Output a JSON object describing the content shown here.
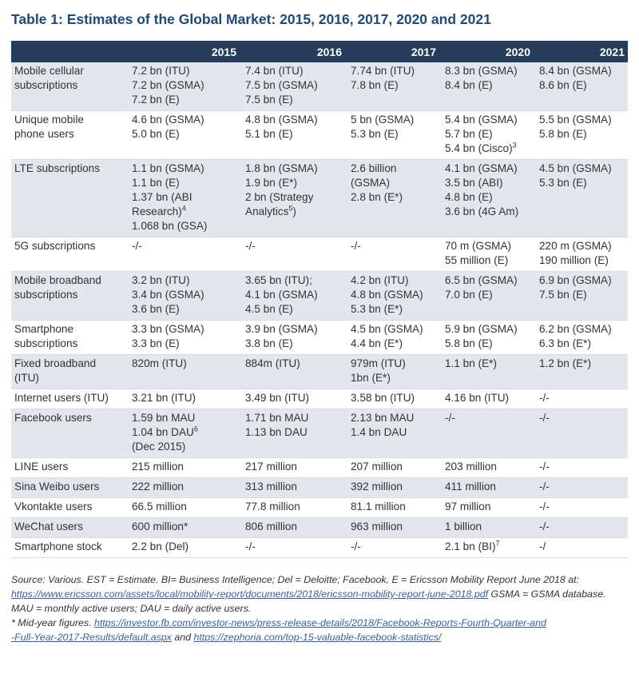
{
  "title": "Table 1: Estimates of the Global Market: 2015, 2016, 2017, 2020 and 2021",
  "table": {
    "headers": [
      "",
      "2015",
      "2016",
      "2017",
      "2020",
      "2021"
    ],
    "rows": [
      {
        "label": [
          "Mobile cellular",
          "subscriptions"
        ],
        "cells": [
          [
            {
              "t": "7.2 bn (ITU)"
            },
            {
              "t": "7.2 bn (GSMA)"
            },
            {
              "t": "7.2 bn (E)"
            }
          ],
          [
            {
              "t": "7.4 bn (ITU)"
            },
            {
              "t": "7.5 bn (GSMA)"
            },
            {
              "t": "7.5 bn (E)"
            }
          ],
          [
            {
              "t": "7.74 bn (ITU)"
            },
            {
              "t": "7.8 bn (E)"
            }
          ],
          [
            {
              "t": "8.3 bn (GSMA)"
            },
            {
              "t": "8.4 bn (E)"
            }
          ],
          [
            {
              "t": "8.4 bn (GSMA)"
            },
            {
              "t": "8.6 bn (E)"
            }
          ]
        ]
      },
      {
        "label": [
          "Unique mobile",
          "phone users"
        ],
        "cells": [
          [
            {
              "t": "4.6 bn (GSMA)"
            },
            {
              "t": "5.0 bn (E)"
            }
          ],
          [
            {
              "t": "4.8 bn (GSMA)"
            },
            {
              "t": "5.1 bn (E)"
            }
          ],
          [
            {
              "t": "5 bn (GSMA)"
            },
            {
              "t": "5.3 bn (E)"
            }
          ],
          [
            {
              "t": "5.4 bn (GSMA)"
            },
            {
              "t": "5.7 bn (E)"
            },
            {
              "t": "5.4 bn (Cisco)",
              "sup": "3"
            }
          ],
          [
            {
              "t": "5.5 bn (GSMA)"
            },
            {
              "t": "5.8 bn (E)"
            }
          ]
        ]
      },
      {
        "label": [
          "LTE subscriptions"
        ],
        "cells": [
          [
            {
              "t": "1.1 bn (GSMA)"
            },
            {
              "t": "1.1 bn (E)"
            },
            {
              "t": "1.37 bn (ABI"
            },
            {
              "t": "Research)",
              "sup": "4"
            },
            {
              "t": "1.068 bn (GSA)"
            }
          ],
          [
            {
              "t": "1.8 bn (GSMA)"
            },
            {
              "t": "1.9 bn (E*)"
            },
            {
              "t": "2 bn (Strategy"
            },
            {
              "t": "Analytics",
              "sup": "5",
              "after": ")"
            }
          ],
          [
            {
              "t": "2.6 billion"
            },
            {
              "t": "(GSMA)"
            },
            {
              "t": "2.8 bn (E*)"
            }
          ],
          [
            {
              "t": "4.1 bn (GSMA)"
            },
            {
              "t": "3.5 bn (ABI)"
            },
            {
              "t": "4.8 bn (E)"
            },
            {
              "t": "3.6 bn (4G Am)"
            }
          ],
          [
            {
              "t": "4.5 bn (GSMA)"
            },
            {
              "t": "5.3 bn (E)"
            }
          ]
        ]
      },
      {
        "label": [
          "5G subscriptions"
        ],
        "cells": [
          [
            {
              "t": "-/-"
            }
          ],
          [
            {
              "t": "-/-"
            }
          ],
          [
            {
              "t": "-/-"
            }
          ],
          [
            {
              "t": "70 m (GSMA)"
            },
            {
              "t": "55 million (E)"
            }
          ],
          [
            {
              "t": "220 m (GSMA)"
            },
            {
              "t": "190 million (E)"
            }
          ]
        ]
      },
      {
        "label": [
          "Mobile broadband",
          "subscriptions"
        ],
        "cells": [
          [
            {
              "t": "3.2 bn (ITU)"
            },
            {
              "t": "3.4 bn (GSMA)"
            },
            {
              "t": "3.6 bn (E)"
            }
          ],
          [
            {
              "t": "3.65 bn (ITU);"
            },
            {
              "t": "4.1 bn (GSMA)"
            },
            {
              "t": "4.5 bn (E)"
            }
          ],
          [
            {
              "t": "4.2 bn (ITU)"
            },
            {
              "t": "4.8 bn (GSMA)"
            },
            {
              "t": "5.3 bn (E*)"
            }
          ],
          [
            {
              "t": "6.5 bn (GSMA)"
            },
            {
              "t": "7.0 bn (E)"
            }
          ],
          [
            {
              "t": "6.9 bn (GSMA)"
            },
            {
              "t": "7.5 bn (E)"
            }
          ]
        ]
      },
      {
        "label": [
          "Smartphone",
          "subscriptions"
        ],
        "cells": [
          [
            {
              "t": "3.3 bn (GSMA)"
            },
            {
              "t": "3.3 bn (E)"
            }
          ],
          [
            {
              "t": "3.9 bn (GSMA)"
            },
            {
              "t": "3.8 bn (E)"
            }
          ],
          [
            {
              "t": "4.5 bn (GSMA)"
            },
            {
              "t": "4.4 bn (E*)"
            }
          ],
          [
            {
              "t": "5.9 bn (GSMA)"
            },
            {
              "t": "5.8 bn (E)"
            }
          ],
          [
            {
              "t": "6.2 bn (GSMA)"
            },
            {
              "t": "6.3 bn (E*)"
            }
          ]
        ]
      },
      {
        "label": [
          "Fixed broadband",
          "(ITU)"
        ],
        "cells": [
          [
            {
              "t": "820m (ITU)"
            }
          ],
          [
            {
              "t": "884m (ITU)"
            }
          ],
          [
            {
              "t": "979m (ITU)"
            },
            {
              "t": "1bn (E*)"
            }
          ],
          [
            {
              "t": "1.1 bn (E*)"
            }
          ],
          [
            {
              "t": "1.2 bn (E*)"
            }
          ]
        ]
      },
      {
        "label": [
          "Internet users (ITU)"
        ],
        "cells": [
          [
            {
              "t": "3.21 bn (ITU)"
            }
          ],
          [
            {
              "t": "3.49 bn (ITU)"
            }
          ],
          [
            {
              "t": "3.58 bn (ITU)"
            }
          ],
          [
            {
              "t": "4.16 bn (ITU)"
            }
          ],
          [
            {
              "t": "-/-"
            }
          ]
        ]
      },
      {
        "label": [
          "Facebook users"
        ],
        "cells": [
          [
            {
              "t": "1.59 bn MAU"
            },
            {
              "t": "1.04 bn DAU",
              "sup": "6"
            },
            {
              "t": "(Dec 2015)"
            }
          ],
          [
            {
              "t": "1.71 bn MAU"
            },
            {
              "t": "1.13 bn DAU"
            }
          ],
          [
            {
              "t": "2.13 bn MAU"
            },
            {
              "t": "1.4 bn DAU"
            }
          ],
          [
            {
              "t": "-/-"
            }
          ],
          [
            {
              "t": "-/-"
            }
          ]
        ]
      },
      {
        "label": [
          "LINE users"
        ],
        "cells": [
          [
            {
              "t": "215 million"
            }
          ],
          [
            {
              "t": "217 million"
            }
          ],
          [
            {
              "t": "207 million"
            }
          ],
          [
            {
              "t": "203 million"
            }
          ],
          [
            {
              "t": "-/-"
            }
          ]
        ]
      },
      {
        "label": [
          "Sina Weibo users"
        ],
        "cells": [
          [
            {
              "t": "222 million"
            }
          ],
          [
            {
              "t": "313 million"
            }
          ],
          [
            {
              "t": "392 million"
            }
          ],
          [
            {
              "t": "411 million"
            }
          ],
          [
            {
              "t": "-/-"
            }
          ]
        ]
      },
      {
        "label": [
          "Vkontakte users"
        ],
        "cells": [
          [
            {
              "t": "66.5 million"
            }
          ],
          [
            {
              "t": "77.8 million"
            }
          ],
          [
            {
              "t": "81.1 million"
            }
          ],
          [
            {
              "t": "97 million"
            }
          ],
          [
            {
              "t": "-/-"
            }
          ]
        ]
      },
      {
        "label": [
          "WeChat users"
        ],
        "cells": [
          [
            {
              "t": "600 million*"
            }
          ],
          [
            {
              "t": "806 million"
            }
          ],
          [
            {
              "t": "963 million"
            }
          ],
          [
            {
              "t": "1 billion"
            }
          ],
          [
            {
              "t": "-/-"
            }
          ]
        ]
      },
      {
        "label": [
          "Smartphone stock"
        ],
        "cells": [
          [
            {
              "t": "2.2 bn (Del)"
            }
          ],
          [
            {
              "t": "-/-"
            }
          ],
          [
            {
              "t": "-/-"
            }
          ],
          [
            {
              "t": "2.1 bn (BI)",
              "sup": "7"
            }
          ],
          [
            {
              "t": "-/"
            }
          ]
        ]
      }
    ]
  },
  "footnotes": {
    "source_pre": "Source: Various. EST = Estimate. BI= Business Intelligence; Del = Deloitte; Facebook, E = Ericsson Mobility Report June 2018 at: ",
    "source_link": "https://www.ericsson.com/assets/local/mobility-report/documents/2018/ericsson-mobility-report-june-2018.pdf",
    "source_post": " GSMA = GSMA database.",
    "abbrev": "MAU = monthly active users; DAU = daily active users.",
    "midyear_pre": "* Mid-year figures. ",
    "fb_link": "https://investor.fb.com/investor-news/press-release-details/2018/Facebook-Reports-Fourth-Quarter-and-Full-Year-2017-Results/default.aspx",
    "fb_link_display_a": "https://investor.fb.com/investor-news/press-release-details/2018/Facebook-Reports-Fourth-Quarter-and",
    "fb_link_display_b": "-Full-Year-2017-Results/default.aspx",
    "and_text": " and ",
    "zephoria_link": "https://zephoria.com/top-15-valuable-facebook-statistics/"
  }
}
